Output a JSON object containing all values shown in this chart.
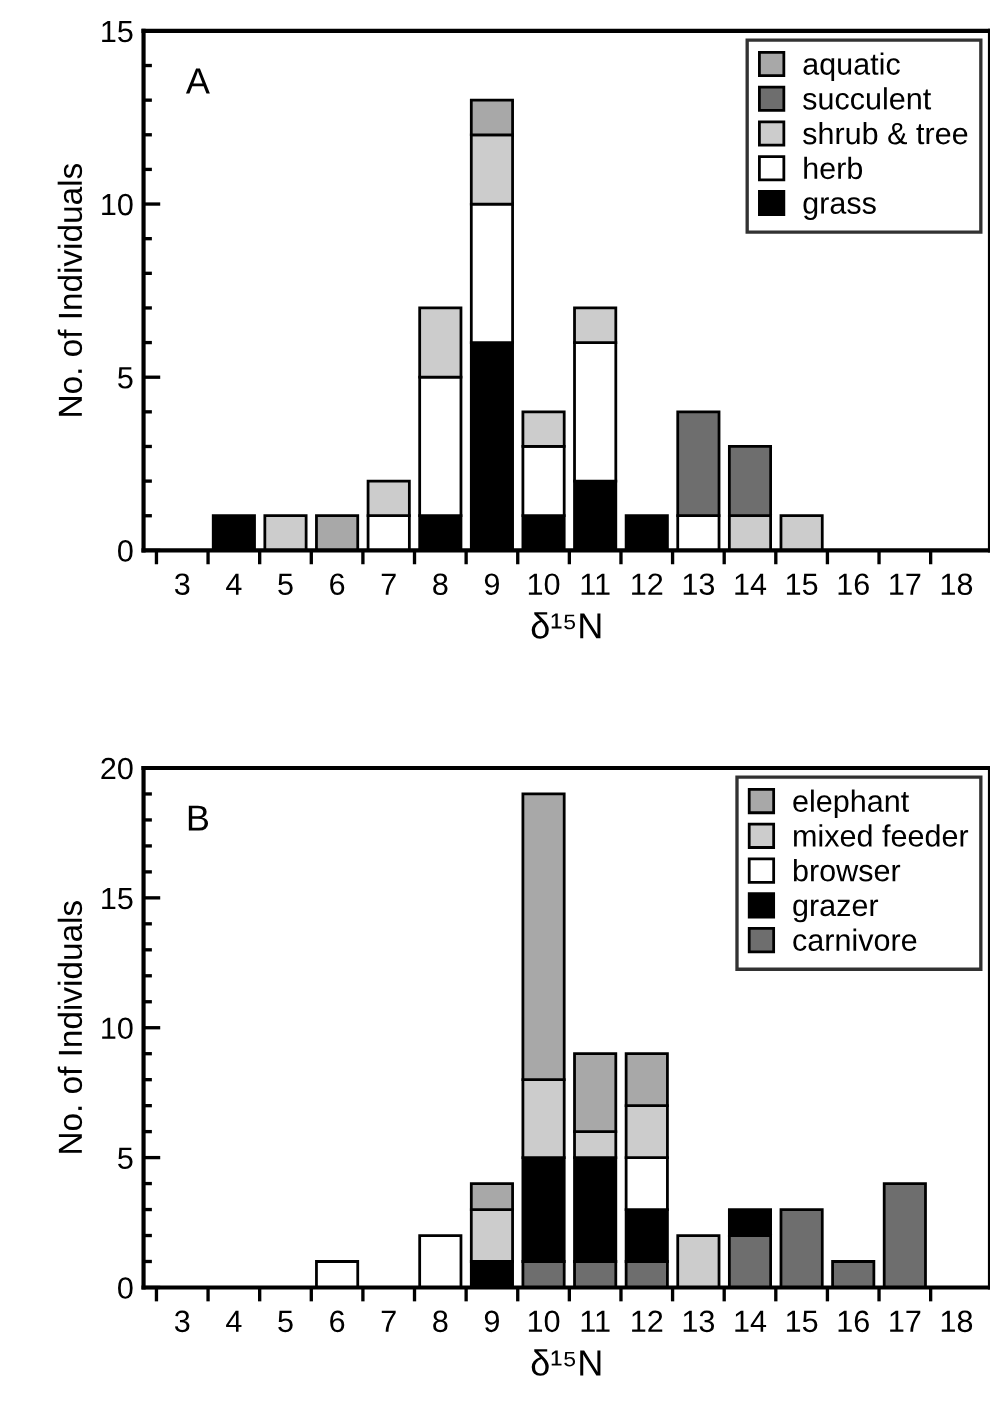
{
  "chart_data": [
    {
      "type": "bar",
      "stacked": true,
      "xlabel": "δ¹⁵N",
      "ylabel": "No. of Individuals",
      "annotations": [
        "A"
      ],
      "legend": "top right",
      "grid": false,
      "categories": [
        "3",
        "4",
        "5",
        "6",
        "7",
        "8",
        "9",
        "10",
        "11",
        "12",
        "13",
        "14",
        "15",
        "16",
        "17",
        "18"
      ],
      "ylim": [
        0,
        15
      ],
      "yticks": [
        0,
        5,
        10,
        15
      ],
      "series": [
        {
          "name": "grass",
          "color": "#000000",
          "values": [
            0,
            1,
            0,
            0,
            0,
            1,
            6,
            1,
            2,
            1,
            0,
            0,
            0,
            0,
            0,
            0
          ]
        },
        {
          "name": "herb",
          "color": "#ffffff",
          "values": [
            0,
            0,
            0,
            0,
            1,
            4,
            4,
            2,
            4,
            0,
            1,
            0,
            0,
            0,
            0,
            0
          ]
        },
        {
          "name": "shrub & tree",
          "color": "#cccccc",
          "values": [
            0,
            0,
            1,
            0,
            1,
            2,
            2,
            1,
            1,
            0,
            0,
            1,
            1,
            0,
            0,
            0
          ]
        },
        {
          "name": "succulent",
          "color": "#6e6e6e",
          "values": [
            0,
            0,
            0,
            0,
            0,
            0,
            0,
            0,
            0,
            0,
            3,
            2,
            0,
            0,
            0,
            0
          ]
        },
        {
          "name": "aquatic",
          "color": "#a8a8a8",
          "values": [
            0,
            0,
            0,
            1,
            0,
            0,
            1,
            0,
            0,
            0,
            0,
            0,
            0,
            0,
            0,
            0
          ]
        }
      ]
    },
    {
      "type": "bar",
      "stacked": true,
      "xlabel": "δ¹⁵N",
      "ylabel": "No. of Individuals",
      "annotations": [
        "B"
      ],
      "legend": "top right",
      "grid": false,
      "categories": [
        "3",
        "4",
        "5",
        "6",
        "7",
        "8",
        "9",
        "10",
        "11",
        "12",
        "13",
        "14",
        "15",
        "16",
        "17",
        "18"
      ],
      "ylim": [
        0,
        20
      ],
      "yticks": [
        0,
        5,
        10,
        15,
        20
      ],
      "series": [
        {
          "name": "carnivore",
          "color": "#6e6e6e",
          "values": [
            0,
            0,
            0,
            0,
            0,
            0,
            0,
            1,
            1,
            1,
            0,
            2,
            3,
            1,
            4,
            0
          ]
        },
        {
          "name": "grazer",
          "color": "#000000",
          "values": [
            0,
            0,
            0,
            0,
            0,
            0,
            1,
            4,
            4,
            2,
            0,
            1,
            0,
            0,
            0,
            0
          ]
        },
        {
          "name": "browser",
          "color": "#ffffff",
          "values": [
            0,
            0,
            0,
            1,
            0,
            2,
            0,
            0,
            0,
            2,
            0,
            0,
            0,
            0,
            0,
            0
          ]
        },
        {
          "name": "mixed feeder",
          "color": "#cccccc",
          "values": [
            0,
            0,
            0,
            0,
            0,
            0,
            2,
            3,
            1,
            2,
            2,
            0,
            0,
            0,
            0,
            0
          ]
        },
        {
          "name": "elephant",
          "color": "#a8a8a8",
          "values": [
            0,
            0,
            0,
            0,
            0,
            0,
            1,
            11,
            3,
            2,
            0,
            0,
            0,
            0,
            0,
            0
          ]
        }
      ]
    }
  ]
}
